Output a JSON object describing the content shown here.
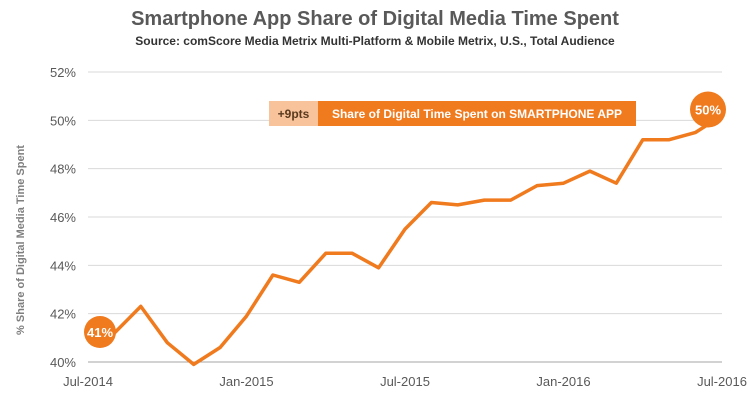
{
  "colors": {
    "series": "#f07a1e",
    "delta_box": "#f8c39a",
    "delta_text": "#5a3a1e",
    "legend_text": "#ffffff"
  },
  "chart_data": {
    "type": "line",
    "title": "Smartphone App Share of Digital Media Time Spent",
    "subtitle": "Source: comScore Media Metrix Multi-Platform & Mobile Metrix, U.S., Total Audience",
    "xlabel": "",
    "ylabel": "% Share of Digital Media Time Spent",
    "ylim": [
      40,
      52
    ],
    "yticks": [
      40,
      42,
      44,
      46,
      48,
      50,
      52
    ],
    "ytick_labels": [
      "40%",
      "42%",
      "44%",
      "46%",
      "48%",
      "50%",
      "52%"
    ],
    "xticks": [
      0,
      6,
      12,
      18,
      24
    ],
    "xtick_labels": [
      "Jul-2014",
      "Jan-2015",
      "Jul-2015",
      "Jan-2016",
      "Jul-2016"
    ],
    "grid": true,
    "series": [
      {
        "name": "Share of Digital Time Spent on SMARTPHONE APP",
        "x": [
          0,
          1,
          2,
          3,
          4,
          5,
          6,
          7,
          8,
          9,
          10,
          11,
          12,
          13,
          14,
          15,
          16,
          17,
          18,
          19,
          20,
          21,
          22,
          23,
          24
        ],
        "values": [
          41.2,
          41.2,
          42.3,
          40.8,
          39.9,
          40.6,
          41.9,
          43.6,
          43.3,
          44.5,
          44.5,
          43.9,
          45.5,
          46.6,
          46.5,
          46.7,
          46.7,
          47.3,
          47.4,
          47.9,
          47.4,
          49.2,
          49.2,
          49.5,
          50.2
        ]
      }
    ],
    "annotations": {
      "start_label": "41%",
      "end_label": "50%",
      "delta_label": "+9pts",
      "legend_label": "Share of Digital Time Spent on SMARTPHONE APP"
    }
  }
}
